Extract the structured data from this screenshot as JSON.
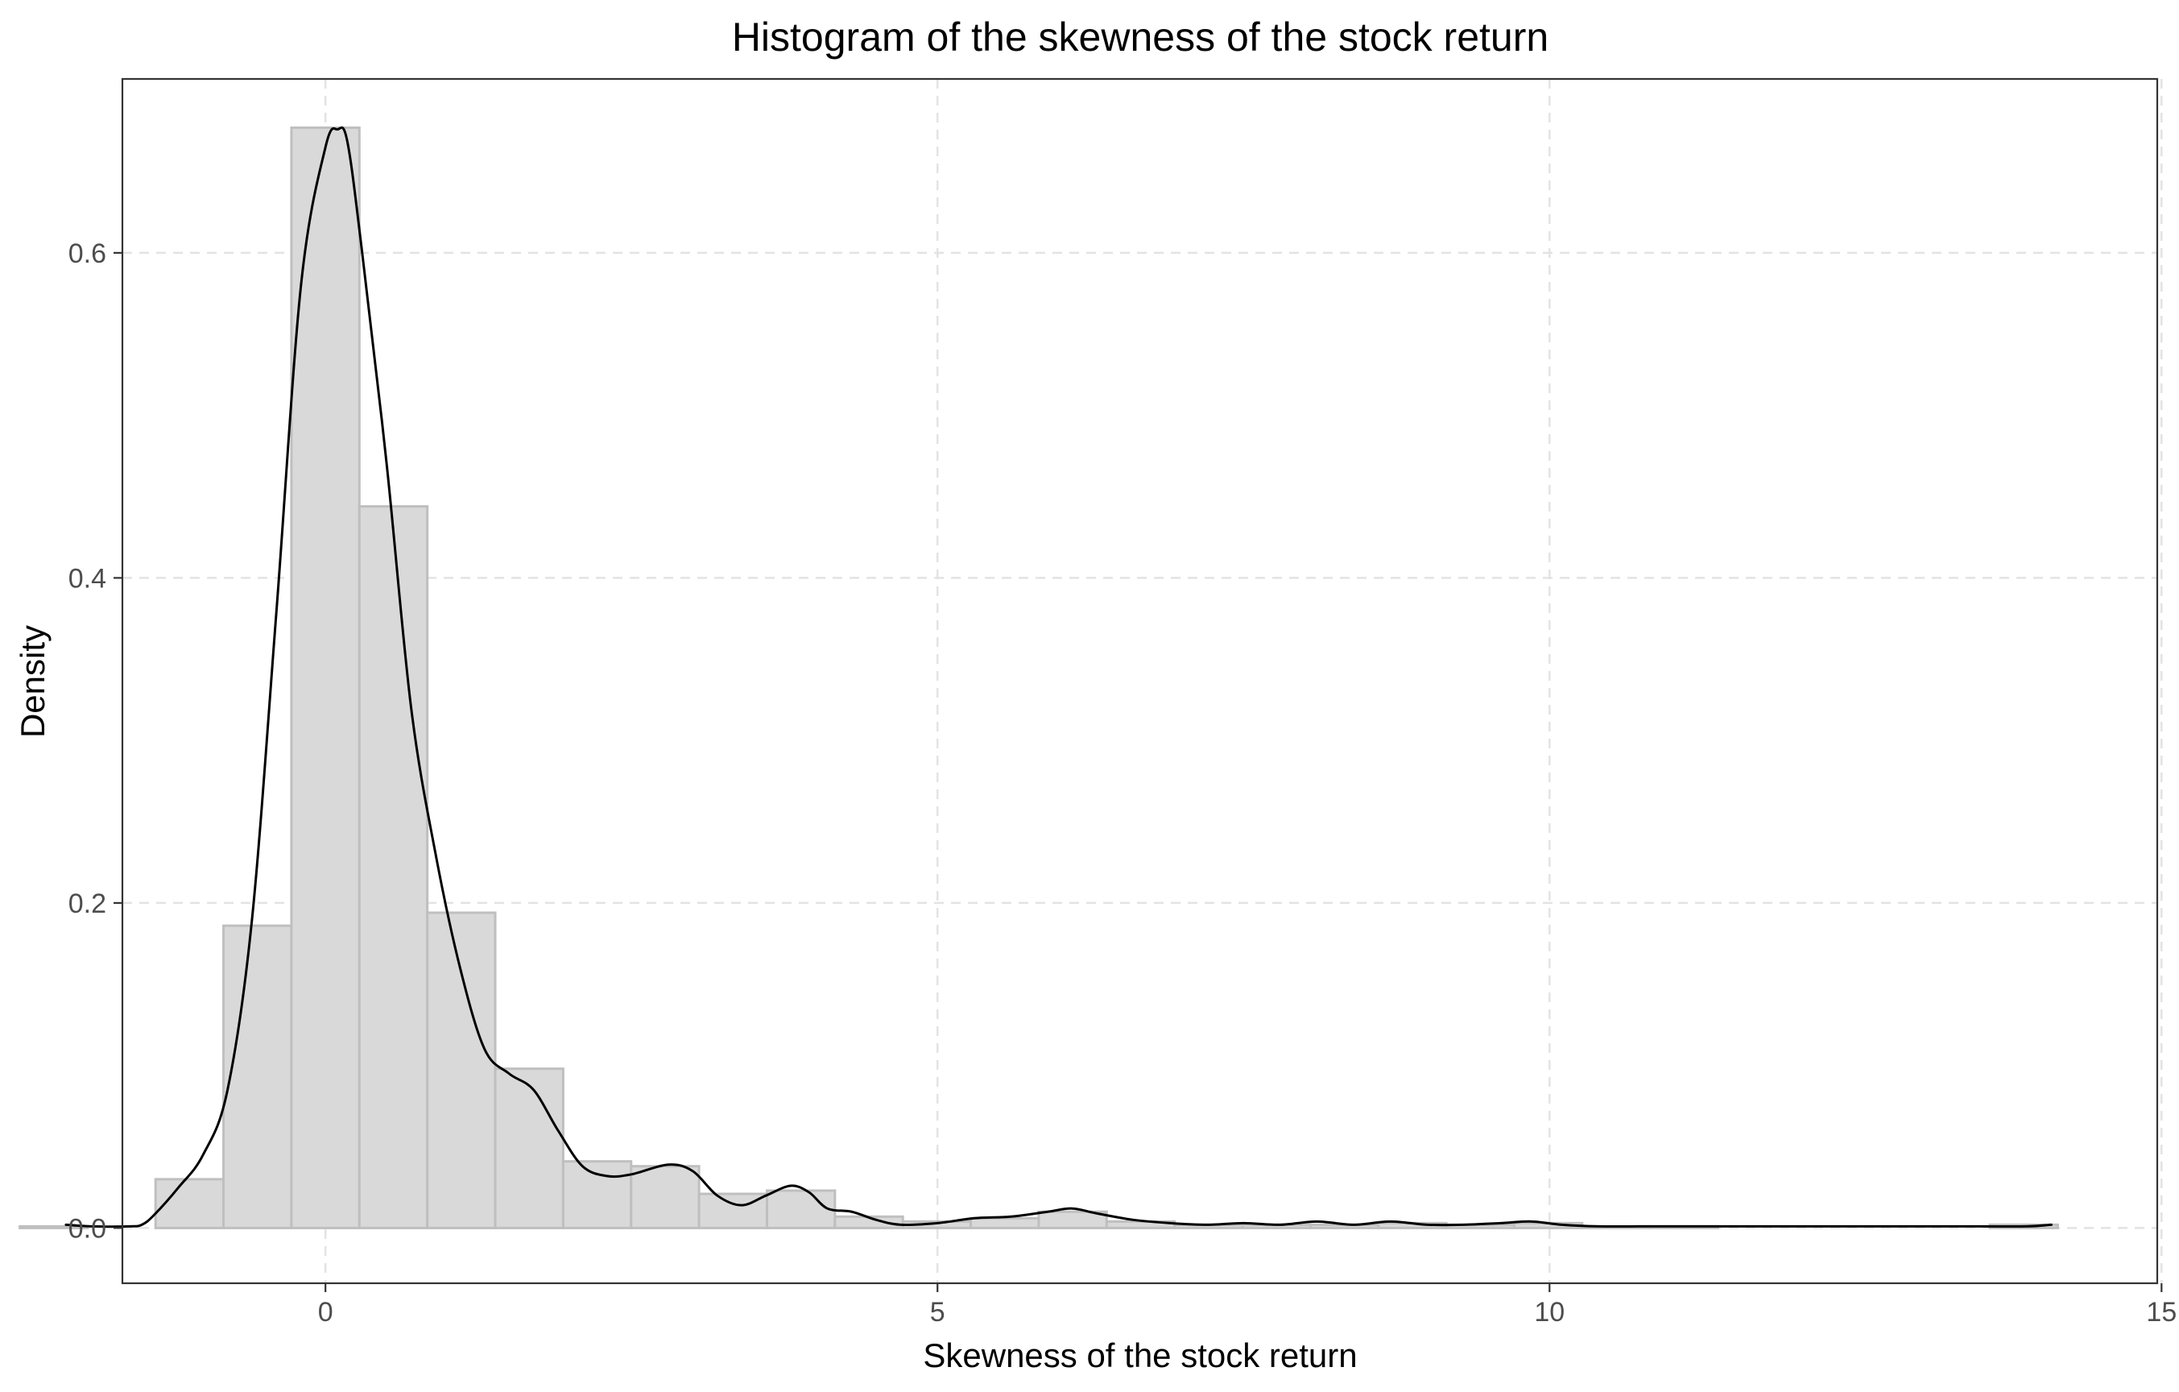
{
  "chart_data": {
    "type": "bar",
    "title": "Histogram of the skewness of the stock return",
    "xlabel": "Skewness of the stock return",
    "ylabel": "Density",
    "xlim": [
      -1.659,
      14.965
    ],
    "ylim": [
      -0.034,
      0.707
    ],
    "x_ticks": [
      {
        "value": 0,
        "label": "0"
      },
      {
        "value": 5,
        "label": "5"
      },
      {
        "value": 10,
        "label": "10"
      },
      {
        "value": 15,
        "label": "15"
      }
    ],
    "y_ticks": [
      {
        "value": 0.0,
        "label": "0.0"
      },
      {
        "value": 0.2,
        "label": "0.2"
      },
      {
        "value": 0.4,
        "label": "0.4"
      },
      {
        "value": 0.6,
        "label": "0.6"
      }
    ],
    "grid": true,
    "grid_style": "dashed",
    "legend": "none",
    "histogram": {
      "bin_width": 0.555,
      "bins": [
        {
          "start": -2.497,
          "end": -1.942,
          "density": 0.001
        },
        {
          "start": -1.388,
          "end": -0.833,
          "density": 0.03
        },
        {
          "start": -0.833,
          "end": -0.278,
          "density": 0.186
        },
        {
          "start": -0.278,
          "end": 0.277,
          "density": 0.677
        },
        {
          "start": 0.277,
          "end": 0.832,
          "density": 0.444
        },
        {
          "start": 0.832,
          "end": 1.387,
          "density": 0.194
        },
        {
          "start": 1.387,
          "end": 1.942,
          "density": 0.098
        },
        {
          "start": 1.942,
          "end": 2.497,
          "density": 0.041
        },
        {
          "start": 2.497,
          "end": 3.052,
          "density": 0.038
        },
        {
          "start": 3.052,
          "end": 3.607,
          "density": 0.021
        },
        {
          "start": 3.607,
          "end": 4.162,
          "density": 0.023
        },
        {
          "start": 4.162,
          "end": 4.717,
          "density": 0.007
        },
        {
          "start": 4.717,
          "end": 5.272,
          "density": 0.004
        },
        {
          "start": 5.272,
          "end": 5.827,
          "density": 0.006
        },
        {
          "start": 5.827,
          "end": 6.382,
          "density": 0.01
        },
        {
          "start": 6.382,
          "end": 6.937,
          "density": 0.004
        },
        {
          "start": 6.937,
          "end": 7.492,
          "density": 0.002
        },
        {
          "start": 7.492,
          "end": 8.047,
          "density": 0.002
        },
        {
          "start": 8.047,
          "end": 8.602,
          "density": 0.002
        },
        {
          "start": 8.602,
          "end": 9.157,
          "density": 0.003
        },
        {
          "start": 9.157,
          "end": 9.712,
          "density": 0.002
        },
        {
          "start": 9.712,
          "end": 10.267,
          "density": 0.003
        },
        {
          "start": 10.267,
          "end": 10.822,
          "density": 0.001
        },
        {
          "start": 10.822,
          "end": 11.377,
          "density": 0.001
        },
        {
          "start": 13.597,
          "end": 14.152,
          "density": 0.002
        }
      ]
    },
    "density_curve": {
      "x": [
        -2.12,
        -1.9,
        -1.6,
        -1.5,
        -1.4,
        -1.2,
        -1.0,
        -0.8,
        -0.6,
        -0.4,
        -0.2,
        0.0,
        0.1,
        0.18,
        0.3,
        0.5,
        0.7,
        0.9,
        1.1,
        1.3,
        1.5,
        1.7,
        1.9,
        2.1,
        2.3,
        2.5,
        2.8,
        3.0,
        3.2,
        3.4,
        3.6,
        3.8,
        3.95,
        4.1,
        4.3,
        4.5,
        4.7,
        5.0,
        5.3,
        5.6,
        5.9,
        6.1,
        6.3,
        6.6,
        6.9,
        7.2,
        7.5,
        7.8,
        8.1,
        8.4,
        8.7,
        9.0,
        9.3,
        9.6,
        9.85,
        10.1,
        10.4,
        10.8,
        11.2,
        11.6,
        12.0,
        12.5,
        13.0,
        13.5,
        13.9,
        14.1
      ],
      "y": [
        0.002,
        0.001,
        0.001,
        0.002,
        0.008,
        0.025,
        0.045,
        0.085,
        0.19,
        0.38,
        0.58,
        0.665,
        0.676,
        0.668,
        0.6,
        0.47,
        0.32,
        0.23,
        0.16,
        0.11,
        0.095,
        0.085,
        0.06,
        0.038,
        0.032,
        0.033,
        0.039,
        0.035,
        0.02,
        0.014,
        0.02,
        0.026,
        0.022,
        0.012,
        0.01,
        0.005,
        0.002,
        0.003,
        0.006,
        0.007,
        0.01,
        0.012,
        0.009,
        0.005,
        0.003,
        0.002,
        0.003,
        0.002,
        0.004,
        0.002,
        0.004,
        0.002,
        0.002,
        0.003,
        0.004,
        0.002,
        0.001,
        0.001,
        0.001,
        0.001,
        0.001,
        0.001,
        0.001,
        0.001,
        0.001,
        0.002
      ]
    },
    "colors": {
      "bar_fill": "#d9d9d9",
      "bar_stroke": "#bfbfbf",
      "curve": "#000000",
      "grid": "#e3e3e3",
      "panel_border": "#333333"
    }
  }
}
